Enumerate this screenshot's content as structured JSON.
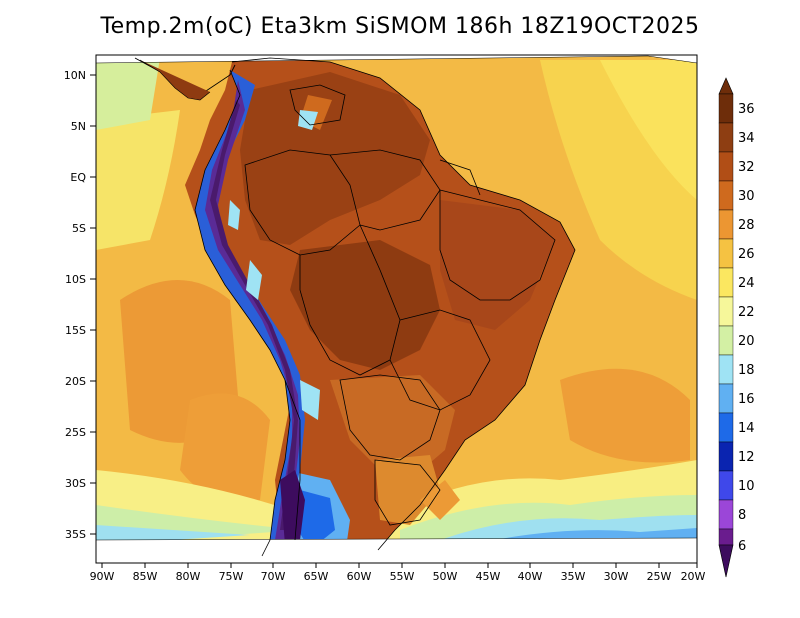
{
  "title": "Temp.2m(oC) Eta3km SiSMOM 186h 18Z19OCT2025",
  "map": {
    "lat_ticks": [
      "10N",
      "5N",
      "EQ",
      "5S",
      "10S",
      "15S",
      "20S",
      "25S",
      "30S",
      "35S"
    ],
    "lon_ticks": [
      "90W",
      "85W",
      "80W",
      "75W",
      "70W",
      "65W",
      "60W",
      "55W",
      "50W",
      "45W",
      "40W",
      "35W",
      "30W",
      "25W",
      "20W"
    ],
    "field": "2 m air temperature over South America",
    "units": "oC"
  },
  "colorbar": {
    "labels": [
      "36",
      "34",
      "32",
      "30",
      "28",
      "26",
      "24",
      "22",
      "20",
      "18",
      "16",
      "14",
      "12",
      "10",
      "8",
      "6"
    ],
    "colors": [
      "#6e2d0a",
      "#8e3e12",
      "#b14e16",
      "#cf6a1e",
      "#ec9632",
      "#f5c242",
      "#fbe760",
      "#f6f79a",
      "#d3f0a4",
      "#9fe3f4",
      "#60b0f2",
      "#1e6ae8",
      "#0a24b0",
      "#3f48ea",
      "#9b46d8",
      "#6a1c8e",
      "#3d0c5e"
    ]
  }
}
